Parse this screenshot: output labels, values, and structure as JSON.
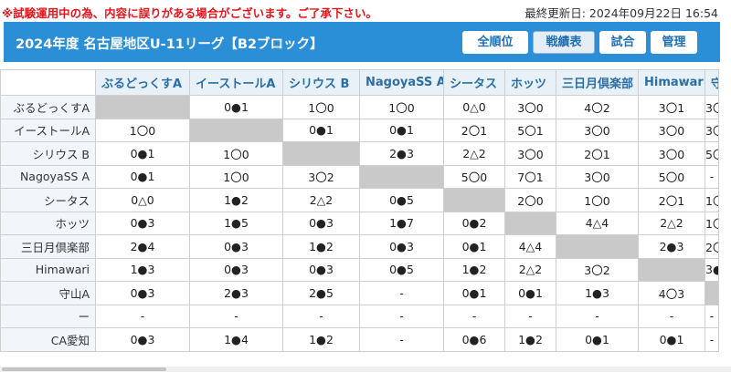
{
  "notice": "※試験運用中の為、内容に誤りがある場合がございます。ご了承下さい。",
  "last_updated": "最終更新日: 2024年09月22日 16:54",
  "header": {
    "title": "2024年度 名古屋地区U-11リーグ【B2ブロック】",
    "nav": [
      "全順位",
      "戦績表",
      "試合",
      "管理"
    ]
  },
  "colors": {
    "header_bg": "#2b8fd8",
    "notice": "#e8141b",
    "diag": "#c9c9c9"
  },
  "table": {
    "columns": [
      "ぶるどっくすA",
      "イーストールA",
      "シリウス B",
      "NagoyaSS A",
      "シータス",
      "ホッツ",
      "三日月倶楽部",
      "Himawari",
      "守山"
    ],
    "rows": [
      {
        "team": "ぶるどっくすA",
        "cells": [
          "",
          "0●1",
          "1〇0",
          "1〇0",
          "0△0",
          "3〇0",
          "4〇2",
          "3〇1",
          "3〇"
        ]
      },
      {
        "team": "イーストールA",
        "cells": [
          "1〇0",
          "",
          "0●1",
          "0●1",
          "2〇1",
          "5〇1",
          "3〇0",
          "3〇0",
          "3〇"
        ]
      },
      {
        "team": "シリウス B",
        "cells": [
          "0●1",
          "1〇0",
          "",
          "2●3",
          "2△2",
          "3〇0",
          "2〇1",
          "3〇0",
          "5〇"
        ]
      },
      {
        "team": "NagoyaSS A",
        "cells": [
          "0●1",
          "1〇0",
          "3〇2",
          "",
          "5〇0",
          "7〇1",
          "3〇0",
          "5〇0",
          "-"
        ]
      },
      {
        "team": "シータス",
        "cells": [
          "0△0",
          "1●2",
          "2△2",
          "0●5",
          "",
          "2〇0",
          "1〇0",
          "2〇1",
          "1〇"
        ]
      },
      {
        "team": "ホッツ",
        "cells": [
          "0●3",
          "1●5",
          "0●3",
          "1●7",
          "0●2",
          "",
          "4△4",
          "2△2",
          "1〇"
        ]
      },
      {
        "team": "三日月倶楽部",
        "cells": [
          "2●4",
          "0●3",
          "1●2",
          "0●3",
          "0●1",
          "4△4",
          "",
          "2●3",
          "2〇"
        ]
      },
      {
        "team": "Himawari",
        "cells": [
          "1●3",
          "0●3",
          "0●3",
          "0●5",
          "1●2",
          "2△2",
          "3〇2",
          "",
          "3●"
        ]
      },
      {
        "team": "守山A",
        "cells": [
          "0●3",
          "2●3",
          "2●5",
          "-",
          "0●1",
          "0●1",
          "1●3",
          "4〇3",
          ""
        ]
      },
      {
        "team": "ー",
        "cells": [
          "-",
          "-",
          "-",
          "-",
          "-",
          "-",
          "-",
          "-",
          "-"
        ]
      },
      {
        "team": "CA愛知",
        "cells": [
          "0●3",
          "1●4",
          "1●2",
          "-",
          "0●6",
          "1●2",
          "0●1",
          "0●1",
          "-"
        ]
      }
    ]
  }
}
